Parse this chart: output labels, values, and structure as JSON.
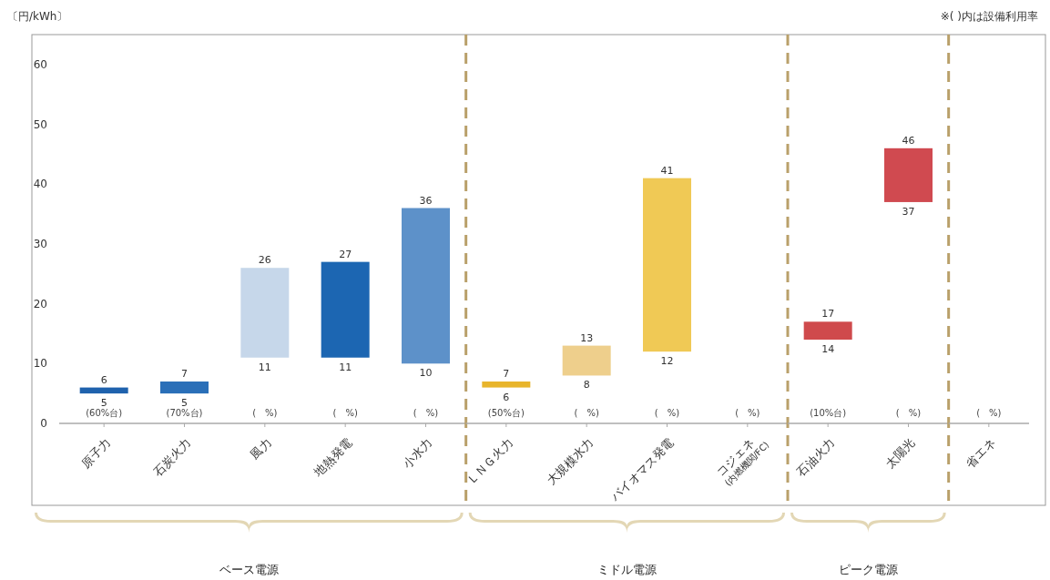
{
  "chart_data": [
    {
      "type": "bar",
      "ylabel": "〔円/kWh〕",
      "xlabel": "ベース電源",
      "categories": [
        "原子力",
        "石炭火力",
        "風力",
        "地熱発電",
        "小水力"
      ],
      "base": [
        5,
        5,
        11,
        11,
        10
      ],
      "values": [
        1,
        2,
        15,
        16,
        26
      ],
      "colors": [
        "#1f62ad",
        "#2a6fb8",
        "#c6d7ea",
        "#1c66b2",
        "#5d91c9"
      ],
      "ylim": [
        0,
        65
      ],
      "yticks": [
        0,
        10,
        20,
        30,
        40,
        50,
        60
      ],
      "annotations": [
        {
          "text": "6",
          "x": "原子力",
          "y": 6
        },
        {
          "text": "5",
          "x": "原子力",
          "y": 5
        },
        {
          "text": "7",
          "x": "石炭火力",
          "y": 7
        },
        {
          "text": "5",
          "x": "石炭火力",
          "y": 5
        },
        {
          "text": "26",
          "x": "風力",
          "y": 26
        },
        {
          "text": "11",
          "x": "風力",
          "y": 11
        },
        {
          "text": "27",
          "x": "地熱発電",
          "y": 27
        },
        {
          "text": "11",
          "x": "地熱発電",
          "y": 11
        },
        {
          "text": "36",
          "x": "小水力",
          "y": 36
        },
        {
          "text": "10",
          "x": "小水力",
          "y": 10
        },
        "(60%台)",
        "(70%台)",
        "(　%)",
        "(　%)",
        "(　%)"
      ]
    },
    {
      "type": "bar",
      "xlabel": "ミドル電源",
      "tick_labels": "x",
      "categories": [
        "ＬＮＧ火力",
        "大規模水力",
        "バイオマス発電",
        "コジェネ\n(内燃機関/FC)"
      ],
      "base": [
        6,
        8,
        12,
        null
      ],
      "values": [
        1,
        5,
        29,
        null
      ],
      "colors": [
        "#e8b52c",
        "#eecf8c",
        "#f0c955",
        null
      ],
      "ylim": [
        0,
        65
      ],
      "yticks": [
        0,
        10,
        20,
        30,
        40,
        50,
        60
      ],
      "annotations": [
        {
          "text": "7",
          "x": "ＬＮＧ火力",
          "y": 7
        },
        {
          "text": "6",
          "x": "ＬＮＧ火力",
          "y": 6
        },
        {
          "text": "13",
          "x": "大規模水力",
          "y": 13
        },
        {
          "text": "8",
          "x": "大規模水力",
          "y": 8
        },
        {
          "text": "41",
          "x": "バイオマス発電",
          "y": 41
        },
        {
          "text": "12",
          "x": "バイオマス発電",
          "y": 12
        },
        "(50%台)",
        "(　%)",
        "(　%)",
        "(　%)"
      ]
    },
    {
      "type": "bar",
      "xlabel": "ピーク電源",
      "tick_labels": "x",
      "categories": [
        "石油火力",
        "太陽光"
      ],
      "base": [
        14,
        37
      ],
      "values": [
        3,
        9
      ],
      "colors": [
        "#cf4a4c",
        "#d04a50"
      ],
      "ylim": [
        0,
        65
      ],
      "yticks": [
        0,
        10,
        20,
        30,
        40,
        50,
        60
      ],
      "annotations": [
        {
          "text": "17",
          "x": "石油火力",
          "y": 17
        },
        {
          "text": "14",
          "x": "石油火力",
          "y": 14
        },
        {
          "text": "46",
          "x": "太陽光",
          "y": 46
        },
        {
          "text": "37",
          "x": "太陽光",
          "y": 37
        },
        "(10%台)",
        "(　%)"
      ]
    },
    {
      "type": "bar",
      "title": "※( )内は設備利用率",
      "tick_labels": "x",
      "categories": [
        "省エネ"
      ],
      "base": [
        null
      ],
      "values": [
        null
      ],
      "ylim": [
        0,
        65
      ],
      "yticks": [
        0,
        10,
        20,
        30,
        40,
        50,
        60
      ],
      "annotations": [
        "(　%)"
      ]
    }
  ]
}
